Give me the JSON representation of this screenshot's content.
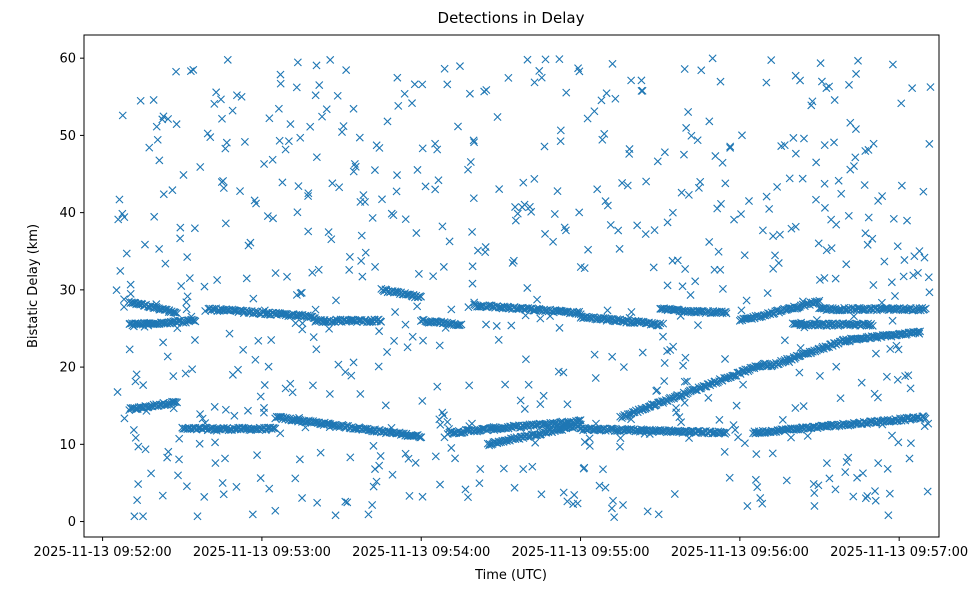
{
  "chart_data": {
    "type": "scatter",
    "title": "Detections in Delay",
    "xlabel": "Time (UTC)",
    "ylabel": "Bistatic Delay (km)",
    "marker": "x",
    "color": "#1f77b4",
    "grid": false,
    "legend": "none",
    "xlim": [
      "2025-11-13 09:51:53",
      "2025-11-13 09:57:15"
    ],
    "ylim": [
      -2,
      63
    ],
    "xticks": [
      "2025-11-13 09:52:00",
      "2025-11-13 09:53:00",
      "2025-11-13 09:54:00",
      "2025-11-13 09:55:00",
      "2025-11-13 09:56:00",
      "2025-11-13 09:57:00"
    ],
    "yticks": [
      0,
      10,
      20,
      30,
      40,
      50,
      60
    ],
    "tracks": [
      {
        "t_start": "2025-11-13 09:52:10",
        "t_end": "2025-11-13 09:52:28",
        "delay_start": 14.5,
        "delay_end": 15.5
      },
      {
        "t_start": "2025-11-13 09:52:30",
        "t_end": "2025-11-13 09:53:05",
        "delay_start": 12.0,
        "delay_end": 12.0
      },
      {
        "t_start": "2025-11-13 09:53:05",
        "t_end": "2025-11-13 09:54:00",
        "delay_start": 13.5,
        "delay_end": 11.0
      },
      {
        "t_start": "2025-11-13 09:54:10",
        "t_end": "2025-11-13 09:55:00",
        "delay_start": 11.5,
        "delay_end": 13.0
      },
      {
        "t_start": "2025-11-13 09:54:25",
        "t_end": "2025-11-13 09:55:00",
        "delay_start": 10.0,
        "delay_end": 12.5
      },
      {
        "t_start": "2025-11-13 09:55:00",
        "t_end": "2025-11-13 09:55:55",
        "delay_start": 12.0,
        "delay_end": 11.5
      },
      {
        "t_start": "2025-11-13 09:55:15",
        "t_end": "2025-11-13 09:56:10",
        "delay_start": 13.5,
        "delay_end": 20.5
      },
      {
        "t_start": "2025-11-13 09:56:05",
        "t_end": "2025-11-13 09:57:10",
        "delay_start": 11.5,
        "delay_end": 13.5
      },
      {
        "t_start": "2025-11-13 09:56:10",
        "t_end": "2025-11-13 09:56:40",
        "delay_start": 20.0,
        "delay_end": 23.5
      },
      {
        "t_start": "2025-11-13 09:56:40",
        "t_end": "2025-11-13 09:57:08",
        "delay_start": 23.5,
        "delay_end": 24.5
      },
      {
        "t_start": "2025-11-13 09:52:10",
        "t_end": "2025-11-13 09:52:28",
        "delay_start": 28.5,
        "delay_end": 27.0
      },
      {
        "t_start": "2025-11-13 09:52:10",
        "t_end": "2025-11-13 09:52:35",
        "delay_start": 25.5,
        "delay_end": 26.0
      },
      {
        "t_start": "2025-11-13 09:52:40",
        "t_end": "2025-11-13 09:53:20",
        "delay_start": 27.5,
        "delay_end": 26.5
      },
      {
        "t_start": "2025-11-13 09:53:20",
        "t_end": "2025-11-13 09:53:45",
        "delay_start": 26.0,
        "delay_end": 26.0
      },
      {
        "t_start": "2025-11-13 09:53:45",
        "t_end": "2025-11-13 09:54:00",
        "delay_start": 30.0,
        "delay_end": 29.0
      },
      {
        "t_start": "2025-11-13 09:54:00",
        "t_end": "2025-11-13 09:54:15",
        "delay_start": 26.0,
        "delay_end": 25.5
      },
      {
        "t_start": "2025-11-13 09:54:20",
        "t_end": "2025-11-13 09:55:00",
        "delay_start": 28.0,
        "delay_end": 27.0
      },
      {
        "t_start": "2025-11-13 09:55:00",
        "t_end": "2025-11-13 09:55:30",
        "delay_start": 26.5,
        "delay_end": 25.5
      },
      {
        "t_start": "2025-11-13 09:55:30",
        "t_end": "2025-11-13 09:55:55",
        "delay_start": 27.5,
        "delay_end": 27.0
      },
      {
        "t_start": "2025-11-13 09:56:00",
        "t_end": "2025-11-13 09:56:30",
        "delay_start": 26.0,
        "delay_end": 28.5
      },
      {
        "t_start": "2025-11-13 09:56:30",
        "t_end": "2025-11-13 09:57:10",
        "delay_start": 27.5,
        "delay_end": 27.5
      },
      {
        "t_start": "2025-11-13 09:56:20",
        "t_end": "2025-11-13 09:56:50",
        "delay_start": 25.5,
        "delay_end": 25.5
      }
    ],
    "clutter": {
      "t_start": "2025-11-13 09:52:05",
      "t_end": "2025-11-13 09:57:12",
      "delay_min": 0.5,
      "delay_max": 60.0,
      "count": 700
    }
  }
}
